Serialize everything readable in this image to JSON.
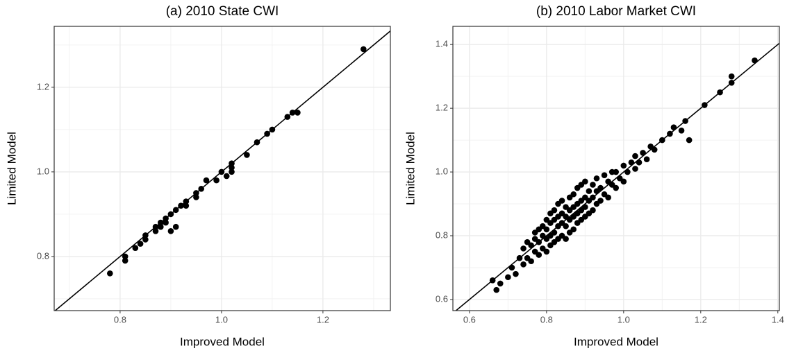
{
  "chart_data": [
    {
      "type": "scatter",
      "title": "(a) 2010 State CWI",
      "x_label": "Improved Model",
      "y_label": "Limited Model",
      "color": "#000000",
      "x": [
        0.78,
        0.81,
        0.81,
        0.83,
        0.84,
        0.85,
        0.85,
        0.87,
        0.87,
        0.88,
        0.88,
        0.89,
        0.89,
        0.9,
        0.9,
        0.91,
        0.91,
        0.92,
        0.93,
        0.93,
        0.95,
        0.95,
        0.96,
        0.97,
        0.99,
        1.0,
        1.01,
        1.02,
        1.02,
        1.02,
        1.05,
        1.07,
        1.09,
        1.1,
        1.13,
        1.14,
        1.15,
        1.28
      ],
      "y": [
        0.76,
        0.79,
        0.8,
        0.82,
        0.83,
        0.84,
        0.85,
        0.86,
        0.87,
        0.87,
        0.88,
        0.88,
        0.89,
        0.86,
        0.9,
        0.87,
        0.91,
        0.92,
        0.92,
        0.93,
        0.94,
        0.95,
        0.96,
        0.98,
        0.98,
        1.0,
        0.99,
        1.0,
        1.01,
        1.02,
        1.04,
        1.07,
        1.09,
        1.1,
        1.13,
        1.14,
        1.14,
        1.29
      ],
      "xlim": [
        0.67,
        1.333
      ],
      "ylim": [
        0.672,
        1.344
      ],
      "xticks": [
        0.8,
        {
          "value": 1,
          "label": "1.0"
        },
        1.2
      ],
      "yticks": [
        0.8,
        {
          "value": 1,
          "label": "1.0"
        },
        1.2
      ],
      "grid": true,
      "minor_grid": true,
      "identity_line": true
    },
    {
      "type": "scatter",
      "title": "(b) 2010 Labor Market CWI",
      "x_label": "Improved Model",
      "y_label": "Limited Model",
      "color": "#000000",
      "x": [
        0.66,
        0.67,
        0.68,
        0.7,
        0.71,
        0.72,
        0.73,
        0.74,
        0.74,
        0.75,
        0.75,
        0.76,
        0.76,
        0.77,
        0.77,
        0.77,
        0.78,
        0.78,
        0.78,
        0.79,
        0.79,
        0.79,
        0.8,
        0.8,
        0.8,
        0.8,
        0.81,
        0.81,
        0.81,
        0.81,
        0.82,
        0.82,
        0.82,
        0.82,
        0.83,
        0.83,
        0.83,
        0.83,
        0.84,
        0.84,
        0.84,
        0.84,
        0.85,
        0.85,
        0.85,
        0.85,
        0.86,
        0.86,
        0.86,
        0.86,
        0.87,
        0.87,
        0.87,
        0.87,
        0.88,
        0.88,
        0.88,
        0.88,
        0.89,
        0.89,
        0.89,
        0.89,
        0.9,
        0.9,
        0.9,
        0.9,
        0.91,
        0.91,
        0.91,
        0.92,
        0.92,
        0.92,
        0.93,
        0.93,
        0.93,
        0.94,
        0.94,
        0.95,
        0.95,
        0.96,
        0.96,
        0.97,
        0.97,
        0.98,
        0.98,
        0.99,
        1.0,
        1.0,
        1.01,
        1.02,
        1.03,
        1.03,
        1.04,
        1.05,
        1.06,
        1.07,
        1.08,
        1.1,
        1.12,
        1.13,
        1.15,
        1.16,
        1.17,
        1.21,
        1.25,
        1.28,
        1.28,
        1.34
      ],
      "y": [
        0.66,
        0.63,
        0.65,
        0.67,
        0.7,
        0.68,
        0.73,
        0.71,
        0.76,
        0.73,
        0.78,
        0.72,
        0.77,
        0.75,
        0.79,
        0.81,
        0.74,
        0.78,
        0.82,
        0.76,
        0.8,
        0.83,
        0.75,
        0.79,
        0.82,
        0.85,
        0.77,
        0.8,
        0.84,
        0.87,
        0.78,
        0.81,
        0.85,
        0.88,
        0.79,
        0.83,
        0.86,
        0.9,
        0.8,
        0.84,
        0.87,
        0.91,
        0.79,
        0.83,
        0.86,
        0.89,
        0.81,
        0.85,
        0.88,
        0.92,
        0.82,
        0.86,
        0.89,
        0.93,
        0.84,
        0.87,
        0.9,
        0.95,
        0.85,
        0.88,
        0.91,
        0.96,
        0.86,
        0.89,
        0.92,
        0.97,
        0.87,
        0.91,
        0.94,
        0.88,
        0.92,
        0.96,
        0.9,
        0.94,
        0.98,
        0.91,
        0.95,
        0.93,
        0.99,
        0.92,
        0.97,
        0.96,
        1.0,
        0.95,
        1.0,
        0.98,
        0.97,
        1.02,
        1.0,
        1.03,
        1.01,
        1.05,
        1.03,
        1.06,
        1.04,
        1.08,
        1.07,
        1.1,
        1.12,
        1.14,
        1.13,
        1.16,
        1.1,
        1.21,
        1.25,
        1.28,
        1.3,
        1.35
      ],
      "xlim": [
        0.557,
        1.404
      ],
      "ylim": [
        0.565,
        1.457
      ],
      "xticks": [
        0.6,
        0.8,
        {
          "value": 1,
          "label": "1.0"
        },
        1.2,
        1.4
      ],
      "yticks": [
        0.6,
        0.8,
        {
          "value": 1,
          "label": "1.0"
        },
        1.2,
        1.4
      ],
      "grid": true,
      "minor_grid": true,
      "identity_line": true
    }
  ]
}
